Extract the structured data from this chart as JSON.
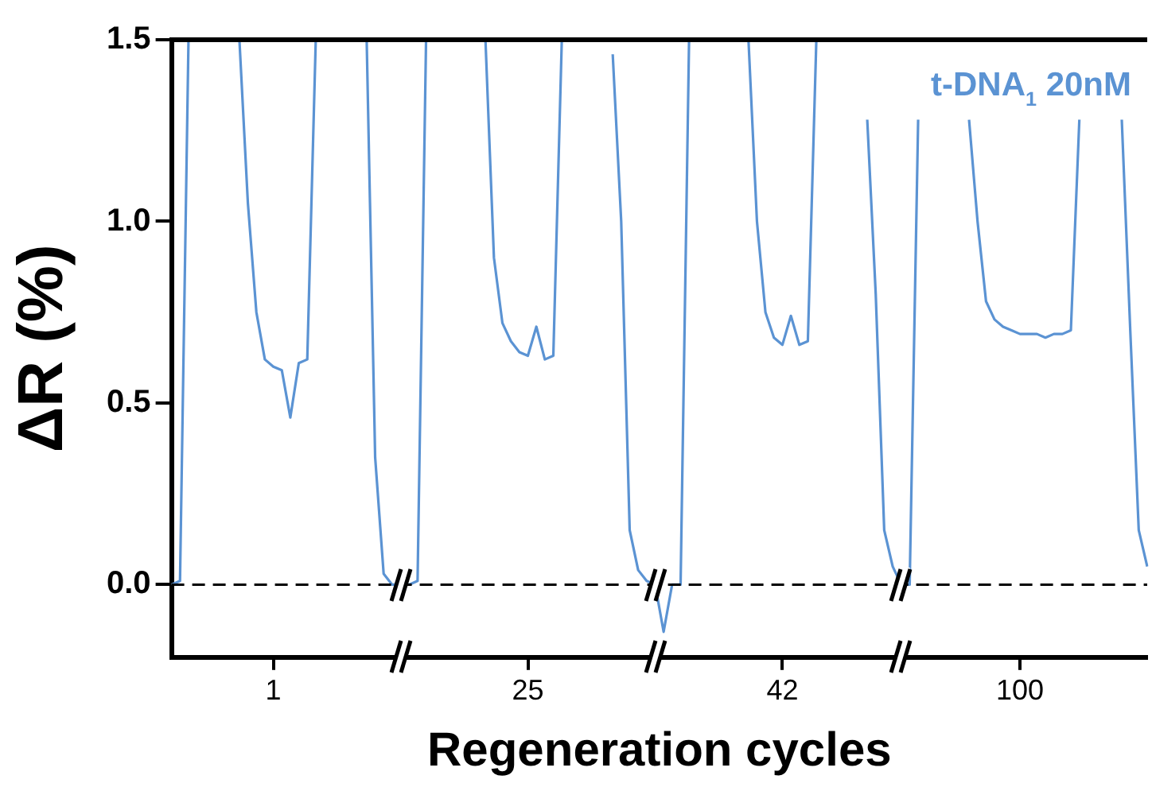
{
  "chart_data": {
    "type": "line",
    "xlabel": "Regeneration cycles",
    "ylabel": "ΔR (%)",
    "categories": [
      null,
      null,
      null,
      null,
      null,
      null,
      null,
      null,
      null,
      null,
      null,
      null,
      "1",
      null,
      null,
      null,
      null,
      null,
      null,
      null,
      null,
      null,
      null,
      null,
      null,
      null,
      null,
      null,
      null,
      null,
      null,
      null,
      null,
      null,
      null,
      null,
      null,
      null,
      null,
      null,
      null,
      null,
      "25",
      null,
      null,
      null,
      null,
      null,
      null,
      null,
      null,
      null,
      null,
      null,
      null,
      null,
      null,
      null,
      null,
      null,
      null,
      null,
      null,
      null,
      null,
      null,
      null,
      null,
      null,
      null,
      null,
      null,
      "42",
      null,
      null,
      null,
      null,
      null,
      null,
      null,
      null,
      null,
      null,
      null,
      null,
      null,
      null,
      null,
      null,
      null,
      null,
      null,
      null,
      null,
      null,
      null,
      null,
      null,
      null,
      null,
      "100",
      null,
      null,
      null,
      null,
      null,
      null,
      null,
      null,
      null,
      null,
      null,
      null,
      null,
      null,
      null
    ],
    "series": [
      {
        "name": "t-DNA$_{1}$ 20nM",
        "color": "#5b93d3",
        "values": [
          0.0,
          0.01,
          1.5,
          null,
          null,
          null,
          null,
          null,
          1.5,
          1.05,
          0.75,
          0.62,
          0.6,
          0.59,
          0.46,
          0.61,
          0.62,
          1.5,
          null,
          null,
          null,
          null,
          null,
          1.5,
          0.35,
          0.03,
          0.0,
          0.0,
          0.0,
          0.01,
          1.5,
          null,
          null,
          null,
          null,
          null,
          null,
          1.5,
          0.9,
          0.72,
          0.67,
          0.64,
          0.63,
          0.71,
          0.62,
          0.63,
          1.5,
          null,
          null,
          null,
          null,
          null,
          1.46,
          1.0,
          0.15,
          0.04,
          0.01,
          0.0,
          -0.13,
          0.0,
          0.0,
          1.5,
          null,
          null,
          null,
          null,
          null,
          null,
          1.5,
          1.0,
          0.75,
          0.68,
          0.66,
          0.74,
          0.66,
          0.67,
          1.5,
          null,
          null,
          null,
          null,
          null,
          1.28,
          0.8,
          0.15,
          0.05,
          0.0,
          0.0,
          1.28,
          null,
          null,
          null,
          null,
          null,
          1.28,
          1.0,
          0.78,
          0.73,
          0.71,
          0.7,
          0.69,
          0.69,
          0.69,
          0.68,
          0.69,
          0.69,
          0.7,
          1.28,
          null,
          null,
          null,
          null,
          1.28,
          0.7,
          0.15,
          0.05
        ]
      }
    ],
    "ylim": [
      -0.2,
      1.5
    ],
    "yticks": [
      {
        "value": 0,
        "label": "0.0"
      },
      {
        "value": 0.5,
        "label": "0.5"
      },
      {
        "value": 1,
        "label": "1.0"
      },
      {
        "value": 1.5,
        "label": "1.5"
      }
    ],
    "ref_lines": [
      {
        "axis": "y",
        "value": 0,
        "line_style": "dashed",
        "color": "#000000"
      }
    ],
    "grid": false,
    "marker": "none",
    "line_style": "solid"
  }
}
